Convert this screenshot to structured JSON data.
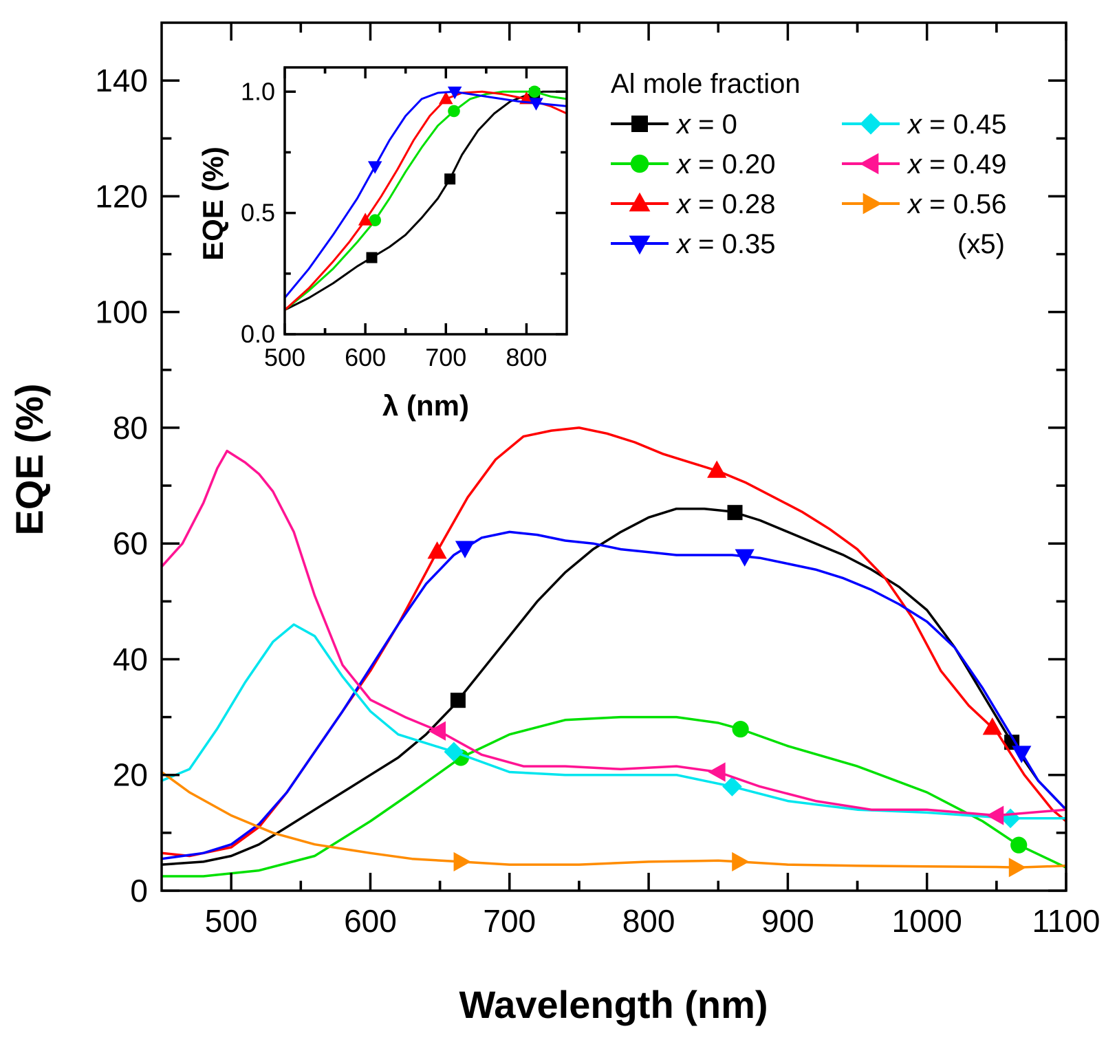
{
  "chart_data": [
    {
      "type": "line",
      "xlabel": "Wavelength (nm)",
      "ylabel": "EQE (%)",
      "xlim": [
        450,
        1100
      ],
      "ylim": [
        0,
        150
      ],
      "xticks": [
        500,
        600,
        700,
        800,
        900,
        1000,
        1100
      ],
      "xtick_labels": [
        "500",
        "600",
        "700",
        "800",
        "900",
        "1000",
        "1100"
      ],
      "yticks": [
        0,
        20,
        40,
        60,
        80,
        100,
        120,
        140
      ],
      "ytick_labels": [
        "0",
        "20",
        "40",
        "60",
        "80",
        "100",
        "120",
        "140"
      ],
      "grid": false,
      "legend_title": "Al mole fraction",
      "legend_note": "(x5)",
      "legend_position": "top-right",
      "series": [
        {
          "name": "x = 0",
          "color": "#000000",
          "marker": "square",
          "x": [
            450,
            480,
            500,
            520,
            540,
            560,
            580,
            600,
            620,
            640,
            660,
            680,
            700,
            720,
            740,
            760,
            780,
            800,
            820,
            840,
            860,
            880,
            900,
            920,
            940,
            960,
            980,
            1000,
            1020,
            1040,
            1060,
            1080,
            1100
          ],
          "y": [
            4.5,
            5,
            6,
            8,
            11,
            14,
            17,
            20,
            23,
            27,
            32,
            38,
            44,
            50,
            55,
            59,
            62,
            64.5,
            66,
            66,
            65.5,
            64,
            62,
            60,
            58,
            55.5,
            52.5,
            48.5,
            42,
            34,
            26,
            19,
            14
          ],
          "marker_x": [
            663,
            862,
            1061
          ]
        },
        {
          "name": "x = 0.20",
          "color": "#00e000",
          "marker": "circle",
          "x": [
            450,
            480,
            520,
            560,
            600,
            630,
            665,
            700,
            740,
            780,
            820,
            850,
            865,
            900,
            950,
            1000,
            1040,
            1065,
            1100
          ],
          "y": [
            2.5,
            2.5,
            3.5,
            6,
            12,
            17,
            23,
            27,
            29.5,
            30,
            30,
            29,
            28,
            25,
            21.5,
            17,
            12,
            8,
            4
          ],
          "marker_x": [
            665,
            866,
            1066
          ]
        },
        {
          "name": "x = 0.28",
          "color": "#ff0000",
          "marker": "triangle-up",
          "x": [
            450,
            470,
            500,
            520,
            540,
            560,
            580,
            600,
            620,
            640,
            650,
            670,
            690,
            710,
            730,
            750,
            770,
            790,
            810,
            830,
            850,
            870,
            890,
            910,
            930,
            950,
            970,
            990,
            1010,
            1030,
            1050,
            1070,
            1090,
            1100
          ],
          "y": [
            6.5,
            6,
            7.5,
            11,
            17,
            24,
            31,
            38,
            46,
            55,
            59.5,
            68,
            74.5,
            78.5,
            79.5,
            80,
            79,
            77.5,
            75.5,
            74,
            72.5,
            70.5,
            68,
            65.5,
            62.5,
            59,
            54,
            47,
            38,
            32,
            27.5,
            20,
            14,
            12
          ],
          "marker_x": [
            648,
            849,
            1047
          ]
        },
        {
          "name": "x = 0.35",
          "color": "#0000ff",
          "marker": "triangle-down",
          "x": [
            450,
            480,
            500,
            520,
            540,
            560,
            580,
            600,
            620,
            640,
            660,
            680,
            700,
            720,
            740,
            760,
            780,
            800,
            820,
            840,
            860,
            880,
            900,
            920,
            940,
            960,
            980,
            1000,
            1020,
            1040,
            1060,
            1080,
            1100
          ],
          "y": [
            5.5,
            6.5,
            8,
            11.5,
            17,
            24,
            31,
            38.5,
            46,
            53,
            58,
            61,
            62,
            61.5,
            60.5,
            60,
            59,
            58.5,
            58,
            58,
            58,
            57.5,
            56.5,
            55.5,
            54,
            52,
            49.5,
            46.5,
            42,
            35,
            27,
            19,
            14
          ],
          "marker_x": [
            668,
            869,
            1068
          ]
        },
        {
          "name": "x = 0.45",
          "color": "#00e5ee",
          "marker": "diamond",
          "x": [
            450,
            470,
            490,
            510,
            530,
            545,
            560,
            580,
            600,
            620,
            660,
            700,
            740,
            780,
            820,
            860,
            900,
            950,
            1000,
            1060,
            1100
          ],
          "y": [
            19,
            21,
            28,
            36,
            43,
            46,
            44,
            37,
            31,
            27,
            24,
            20.5,
            20,
            20,
            20,
            18,
            15.5,
            14,
            13.5,
            12.5,
            12.5
          ],
          "marker_x": [
            660,
            860,
            1060
          ]
        },
        {
          "name": "x = 0.49",
          "color": "#ff1493",
          "marker": "triangle-left",
          "x": [
            450,
            465,
            480,
            490,
            497,
            510,
            520,
            530,
            545,
            560,
            580,
            600,
            625,
            650,
            680,
            710,
            740,
            780,
            820,
            850,
            880,
            920,
            960,
            1000,
            1050,
            1100
          ],
          "y": [
            56,
            60,
            67,
            73,
            76,
            74,
            72,
            69,
            62,
            51,
            39,
            33,
            30,
            27.5,
            23.5,
            21.5,
            21.5,
            21,
            21.5,
            20.5,
            18,
            15.5,
            14,
            14,
            13,
            14
          ],
          "marker_x": [
            649,
            850,
            1050
          ]
        },
        {
          "name": "x = 0.56",
          "color": "#ff8c00",
          "marker": "triangle-right",
          "x": [
            450,
            470,
            500,
            530,
            560,
            600,
            630,
            665,
            700,
            750,
            800,
            850,
            865,
            900,
            950,
            1000,
            1050,
            1065,
            1100
          ],
          "y": [
            20.5,
            17,
            13,
            10,
            8,
            6.5,
            5.5,
            5,
            4.5,
            4.5,
            5,
            5.2,
            5,
            4.5,
            4.3,
            4.2,
            4.1,
            4.0,
            4.3
          ],
          "marker_x": [
            665,
            865,
            1064
          ]
        }
      ]
    },
    {
      "type": "line",
      "role": "inset",
      "xlabel": "λ (nm)",
      "ylabel": "EQE (%)",
      "xlim": [
        500,
        850
      ],
      "ylim": [
        0.0,
        1.1
      ],
      "xticks": [
        500,
        600,
        700,
        800
      ],
      "xtick_labels": [
        "500",
        "600",
        "700",
        "800"
      ],
      "yticks": [
        0.0,
        0.5,
        1.0
      ],
      "ytick_labels": [
        "0.0",
        "0.5",
        "1.0"
      ],
      "series": [
        {
          "name": "x = 0",
          "color": "#000000",
          "marker": "square",
          "x": [
            500,
            530,
            560,
            590,
            610,
            630,
            650,
            670,
            690,
            705,
            720,
            740,
            760,
            780,
            800,
            820,
            850
          ],
          "y": [
            0.1,
            0.15,
            0.21,
            0.28,
            0.32,
            0.36,
            0.41,
            0.48,
            0.56,
            0.64,
            0.74,
            0.84,
            0.91,
            0.96,
            0.985,
            1.0,
            1.0
          ],
          "marker_x": [
            608,
            705,
            810
          ]
        },
        {
          "name": "x = 0.20",
          "color": "#00e000",
          "marker": "circle",
          "x": [
            500,
            530,
            560,
            590,
            610,
            630,
            650,
            670,
            690,
            710,
            730,
            750,
            770,
            790,
            810,
            830,
            850
          ],
          "y": [
            0.1,
            0.18,
            0.27,
            0.38,
            0.46,
            0.56,
            0.67,
            0.77,
            0.86,
            0.92,
            0.97,
            0.99,
            1.0,
            1.0,
            1.0,
            0.98,
            0.97
          ],
          "marker_x": [
            612,
            710,
            810
          ]
        },
        {
          "name": "x = 0.28",
          "color": "#ff0000",
          "marker": "triangle-up",
          "x": [
            500,
            530,
            560,
            580,
            600,
            620,
            640,
            660,
            680,
            700,
            720,
            745,
            770,
            800,
            830,
            850
          ],
          "y": [
            0.1,
            0.19,
            0.3,
            0.38,
            0.47,
            0.57,
            0.68,
            0.8,
            0.9,
            0.97,
            0.995,
            1.0,
            0.99,
            0.97,
            0.94,
            0.91
          ],
          "marker_x": [
            600,
            700,
            800
          ]
        },
        {
          "name": "x = 0.35",
          "color": "#0000ff",
          "marker": "triangle-down",
          "x": [
            500,
            530,
            560,
            590,
            610,
            630,
            650,
            670,
            690,
            710,
            730,
            760,
            790,
            820,
            850
          ],
          "y": [
            0.15,
            0.27,
            0.41,
            0.56,
            0.68,
            0.8,
            0.9,
            0.97,
            0.995,
            1.0,
            0.99,
            0.975,
            0.96,
            0.95,
            0.94
          ],
          "marker_x": [
            612,
            711,
            812
          ]
        }
      ]
    }
  ]
}
